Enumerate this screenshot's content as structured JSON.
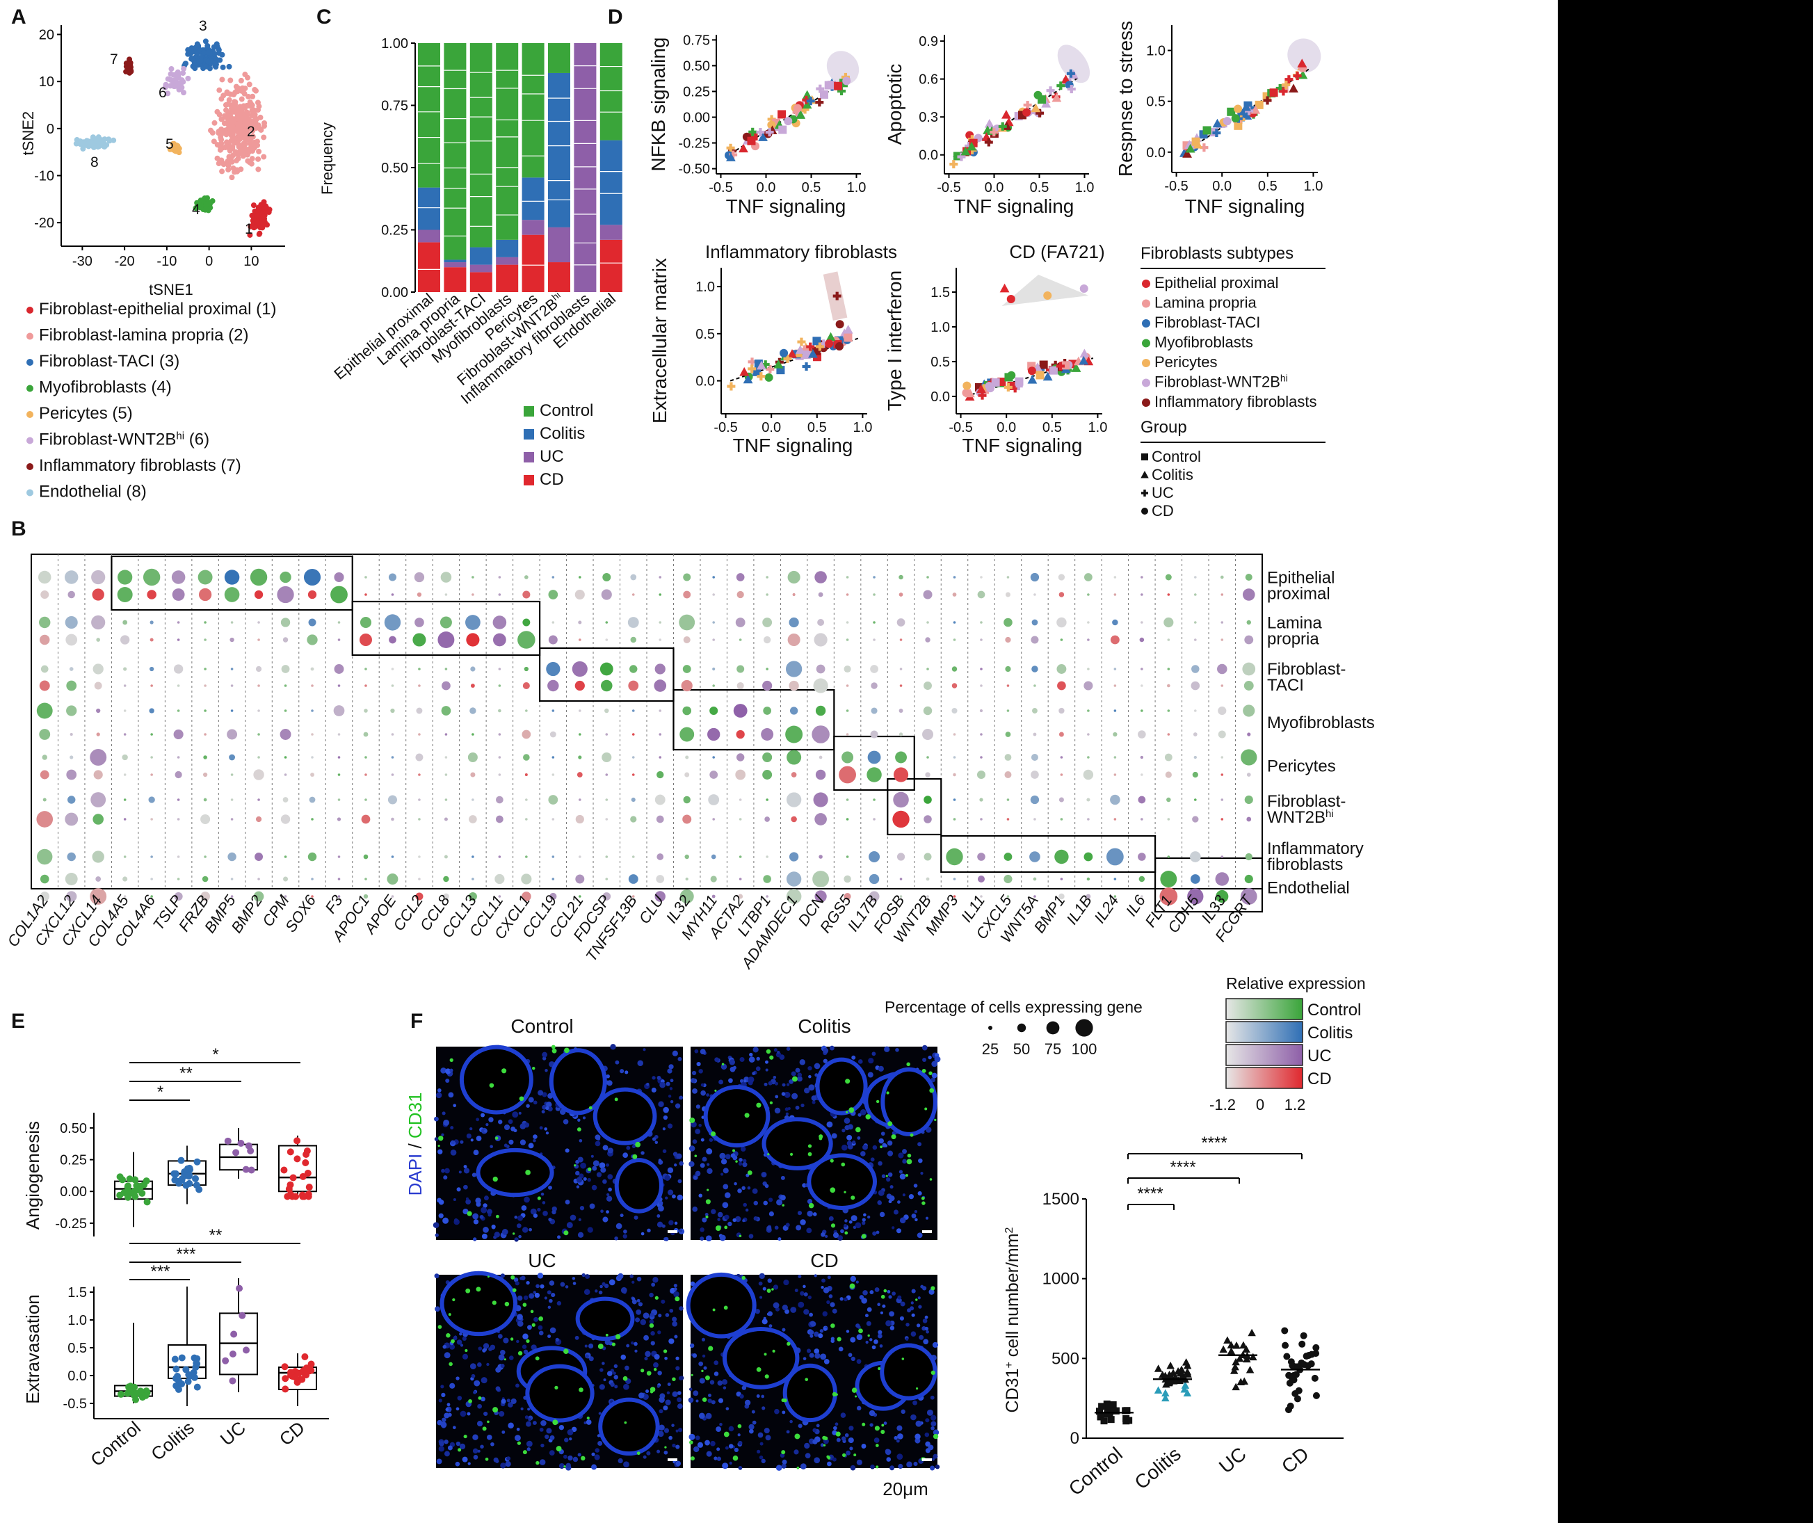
{
  "colors": {
    "Control": "#3aa53a",
    "Colitis": "#2f6fb5",
    "UC": "#8e5fa8",
    "CD": "#e0282e",
    "clusters": [
      "#d9272e",
      "#ef9a9a",
      "#2f6fb5",
      "#3aa53a",
      "#f2b35d",
      "#c8a8d8",
      "#8b1a1a",
      "#9ec9e0"
    ]
  },
  "panels": {
    "A": {
      "label": "A",
      "xlabel": "tSNE1",
      "ylabel": "tSNE2",
      "legend": [
        "Fibroblast-epithelial proximal (1)",
        "Fibroblast-lamina propria (2)",
        "Fibroblast-TACI (3)",
        "Myofibroblasts (4)",
        "Pericytes (5)",
        "Fibroblast-WNT2B",
        "Inflammatory fibroblasts (7)",
        "Endothelial (8)"
      ],
      "legend_sup": "hi",
      "legend_tail": " (6)"
    },
    "B": {
      "label": "B",
      "genes": [
        "COL1A2",
        "CXCL12",
        "CXCL14",
        "COL4A5",
        "COL4A6",
        "TSLP",
        "FRZB",
        "BMP5",
        "BMP2",
        "CPM",
        "SOX6",
        "F3",
        "APOC1",
        "APOE",
        "CCL2",
        "CCL8",
        "CCL13",
        "CCL11",
        "CXCL1",
        "CCL19",
        "CCL21",
        "FDCSP",
        "TNFSF13B",
        "CLU",
        "IL32",
        "MYH11",
        "ACTA2",
        "LTBP1",
        "ADAMDEC1",
        "DCN",
        "RGS5",
        "IL17B",
        "FOSB",
        "WNT2B",
        "MMP3",
        "IL11",
        "CXCL5",
        "WNT5A",
        "BMP1",
        "IL1B",
        "IL24",
        "IL6",
        "FLT1",
        "CDH5",
        "IL33",
        "FCGRT"
      ],
      "rows": [
        "Epithelial proximal",
        "Lamina propria",
        "Fibroblast-TACI",
        "Myofibroblasts",
        "Pericytes",
        "Fibroblast-WNT2B",
        "Inflammatory fibroblasts",
        "Endothelial"
      ],
      "row_lines": [
        [
          "Epithelial",
          "proximal"
        ],
        [
          "Lamina",
          "propria"
        ],
        [
          "Fibroblast-",
          "TACI"
        ],
        [
          "Myofibroblasts"
        ],
        [
          "Pericytes"
        ],
        [
          "Fibroblast-",
          "WNT2B"
        ],
        [
          "Inflammatory",
          "fibroblasts"
        ],
        [
          "Endothelial"
        ]
      ],
      "size_legend_title": "Percentage of cells expressing gene",
      "size_legend_values": [
        "25",
        "50",
        "75",
        "100"
      ],
      "color_legend_title": "Relative expression",
      "color_legend_items": [
        "Control",
        "Colitis",
        "UC",
        "CD"
      ],
      "color_legend_ticks": [
        "-1.2",
        "0",
        "1.2"
      ]
    },
    "C": {
      "label": "C",
      "ylabel": "Frequency",
      "categories": [
        "Epithelial proximal",
        "Lamina propria",
        "Fibroblast-TACI",
        "Myofibroblasts",
        "Pericytes",
        "Fibroblast-WNT2B",
        "Inflammatory fibroblasts",
        "Endothelial"
      ],
      "hi_index": 5,
      "legend": [
        "Control",
        "Colitis",
        "UC",
        "CD"
      ]
    },
    "D": {
      "label": "D",
      "xlabel": "TNF signaling",
      "plots": [
        {
          "ylabel": "NFKB signaling",
          "title": ""
        },
        {
          "ylabel": "Apoptotic",
          "title": ""
        },
        {
          "ylabel": "Respnse to stress",
          "title": ""
        },
        {
          "ylabel": "Extracellular matrix",
          "title": "Inflammatory fibroblasts"
        },
        {
          "ylabel": "Type I interferon",
          "title": "CD (FA721)"
        }
      ],
      "legend_title": "Fibroblasts subtypes",
      "legend_items": [
        "Epithelial proximal",
        "Lamina propria",
        "Fibroblast-TACI",
        "Myofibroblasts",
        "Pericytes",
        "Fibroblast-WNT2B",
        "Inflammatory fibroblasts"
      ],
      "group_title": "Group",
      "group_items": [
        "Control",
        "Colitis",
        "UC",
        "CD"
      ]
    },
    "E": {
      "label": "E",
      "ylabel_top": "Angiogenesis",
      "ylabel_bottom": "Extravasation",
      "categories": [
        "Control",
        "Colitis",
        "UC",
        "CD"
      ],
      "sig_top": [
        "*",
        "**",
        "*"
      ],
      "sig_bottom": [
        "**",
        "***",
        "***"
      ]
    },
    "F": {
      "label": "F",
      "image_titles": [
        "Control",
        "Colitis",
        "UC",
        "CD"
      ],
      "stain_label_a": "DAPI",
      "stain_sep": " / ",
      "stain_label_b": "CD31",
      "scale_label": "20μm",
      "ylabel": "cell number/mm",
      "ylabel_prefix": "CD31",
      "categories": [
        "Control",
        "Colitis",
        "UC",
        "CD"
      ],
      "sig": [
        "****",
        "****",
        "****"
      ]
    }
  },
  "chart_data": [
    {
      "panel": "C",
      "type": "bar",
      "stacked": true,
      "ylabel": "Frequency",
      "ylim": [
        0,
        1
      ],
      "yticks": [
        "0.00",
        "0.25",
        "0.50",
        "0.75",
        "1.00"
      ],
      "categories": [
        "Epithelial proximal",
        "Lamina propria",
        "Fibroblast-TACI",
        "Myofibroblasts",
        "Pericytes",
        "Fibroblast-WNT2B",
        "Inflammatory fibroblasts",
        "Endothelial"
      ],
      "series": [
        {
          "name": "CD",
          "values": [
            0.2,
            0.1,
            0.08,
            0.11,
            0.23,
            0.12,
            0.0,
            0.21
          ]
        },
        {
          "name": "UC",
          "values": [
            0.05,
            0.02,
            0.03,
            0.03,
            0.06,
            0.14,
            1.0,
            0.06
          ]
        },
        {
          "name": "Colitis",
          "values": [
            0.17,
            0.01,
            0.07,
            0.07,
            0.17,
            0.62,
            0.0,
            0.34
          ]
        },
        {
          "name": "Control",
          "values": [
            0.58,
            0.87,
            0.82,
            0.79,
            0.54,
            0.12,
            0.0,
            0.39
          ]
        }
      ]
    },
    {
      "panel": "D1",
      "type": "scatter",
      "xlabel": "TNF signaling",
      "ylabel": "NFKB signaling",
      "xlim": [
        -0.55,
        1.05
      ],
      "ylim": [
        -0.55,
        0.8
      ],
      "xticks": [
        "-0.5",
        "0.0",
        "0.5",
        "1.0"
      ],
      "yticks": [
        "-0.50",
        "-0.25",
        "0.00",
        "0.25",
        "0.50",
        "0.75"
      ]
    },
    {
      "panel": "D2",
      "type": "scatter",
      "xlabel": "TNF signaling",
      "ylabel": "Apoptotic",
      "xlim": [
        -0.55,
        1.05
      ],
      "ylim": [
        -0.15,
        0.95
      ],
      "xticks": [
        "-0.5",
        "0.0",
        "0.5",
        "1.0"
      ],
      "yticks": [
        "0.0",
        "0.3",
        "0.6",
        "0.9"
      ]
    },
    {
      "panel": "D3",
      "type": "scatter",
      "xlabel": "TNF signaling",
      "ylabel": "Respnse to stress",
      "xlim": [
        -0.55,
        1.05
      ],
      "ylim": [
        -0.2,
        1.25
      ],
      "xticks": [
        "-0.5",
        "0.0",
        "0.5",
        "1.0"
      ],
      "yticks": [
        "0.0",
        "0.5",
        "1.0"
      ]
    },
    {
      "panel": "D4",
      "type": "scatter",
      "title": "Inflammatory fibroblasts",
      "xlabel": "TNF signaling",
      "ylabel": "Extracellular matrix",
      "xlim": [
        -0.55,
        1.05
      ],
      "ylim": [
        -0.35,
        1.2
      ],
      "xticks": [
        "-0.5",
        "0.0",
        "0.5",
        "1.0"
      ],
      "yticks": [
        "0.0",
        "0.5",
        "1.0"
      ]
    },
    {
      "panel": "D5",
      "type": "scatter",
      "title": "CD (FA721)",
      "xlabel": "TNF signaling",
      "ylabel": "Type I interferon",
      "xlim": [
        -0.55,
        1.05
      ],
      "ylim": [
        -0.25,
        1.85
      ],
      "xticks": [
        "-0.5",
        "0.0",
        "0.5",
        "1.0"
      ],
      "yticks": [
        "0.0",
        "0.5",
        "1.0",
        "1.5"
      ]
    },
    {
      "panel": "E-top",
      "type": "scatter",
      "ylabel": "Angiogenesis",
      "categories": [
        "Control",
        "Colitis",
        "UC",
        "CD"
      ],
      "ylim": [
        -0.3,
        0.62
      ],
      "yticks": [
        "-0.25",
        "0.00",
        "0.25",
        "0.50"
      ],
      "boxes": [
        {
          "group": "Control",
          "q1": -0.06,
          "median": 0.02,
          "q3": 0.08,
          "min": -0.28,
          "max": 0.31
        },
        {
          "group": "Colitis",
          "q1": 0.05,
          "median": 0.14,
          "q3": 0.24,
          "min": -0.1,
          "max": 0.36
        },
        {
          "group": "UC",
          "q1": 0.17,
          "median": 0.27,
          "q3": 0.37,
          "min": 0.1,
          "max": 0.5
        },
        {
          "group": "CD",
          "q1": 0.0,
          "median": 0.11,
          "q3": 0.36,
          "min": -0.04,
          "max": 0.44
        }
      ],
      "significance": [
        {
          "a": "Control",
          "b": "Colitis",
          "label": "*"
        },
        {
          "a": "Control",
          "b": "UC",
          "label": "**"
        },
        {
          "a": "Control",
          "b": "CD",
          "label": "*"
        }
      ]
    },
    {
      "panel": "E-bottom",
      "type": "scatter",
      "ylabel": "Extravasation",
      "categories": [
        "Control",
        "Colitis",
        "UC",
        "CD"
      ],
      "ylim": [
        -0.65,
        1.6
      ],
      "yticks": [
        "-0.5",
        "0.0",
        "0.5",
        "1.0",
        "1.5"
      ],
      "boxes": [
        {
          "group": "Control",
          "q1": -0.37,
          "median": -0.28,
          "q3": -0.18,
          "min": -0.5,
          "max": 0.95
        },
        {
          "group": "Colitis",
          "q1": -0.05,
          "median": 0.15,
          "q3": 0.55,
          "min": -0.55,
          "max": 1.6
        },
        {
          "group": "UC",
          "q1": 0.02,
          "median": 0.58,
          "q3": 1.12,
          "min": -0.3,
          "max": 1.75
        },
        {
          "group": "CD",
          "q1": -0.25,
          "median": 0.05,
          "q3": 0.15,
          "min": -0.55,
          "max": 0.4
        }
      ],
      "significance": [
        {
          "a": "Control",
          "b": "Colitis",
          "label": "***"
        },
        {
          "a": "Control",
          "b": "UC",
          "label": "***"
        },
        {
          "a": "Control",
          "b": "CD",
          "label": "**"
        }
      ]
    },
    {
      "panel": "F-right",
      "type": "scatter",
      "ylabel": "CD31+ cell number/mm2",
      "categories": [
        "Control",
        "Colitis",
        "UC",
        "CD"
      ],
      "ylim": [
        0,
        1500
      ],
      "yticks": [
        "0",
        "500",
        "1000",
        "1500"
      ],
      "medians": [
        160,
        370,
        520,
        430
      ],
      "significance": [
        {
          "a": "Control",
          "b": "Colitis",
          "label": "****"
        },
        {
          "a": "Control",
          "b": "UC",
          "label": "****"
        },
        {
          "a": "Control",
          "b": "CD",
          "label": "****"
        }
      ]
    }
  ]
}
